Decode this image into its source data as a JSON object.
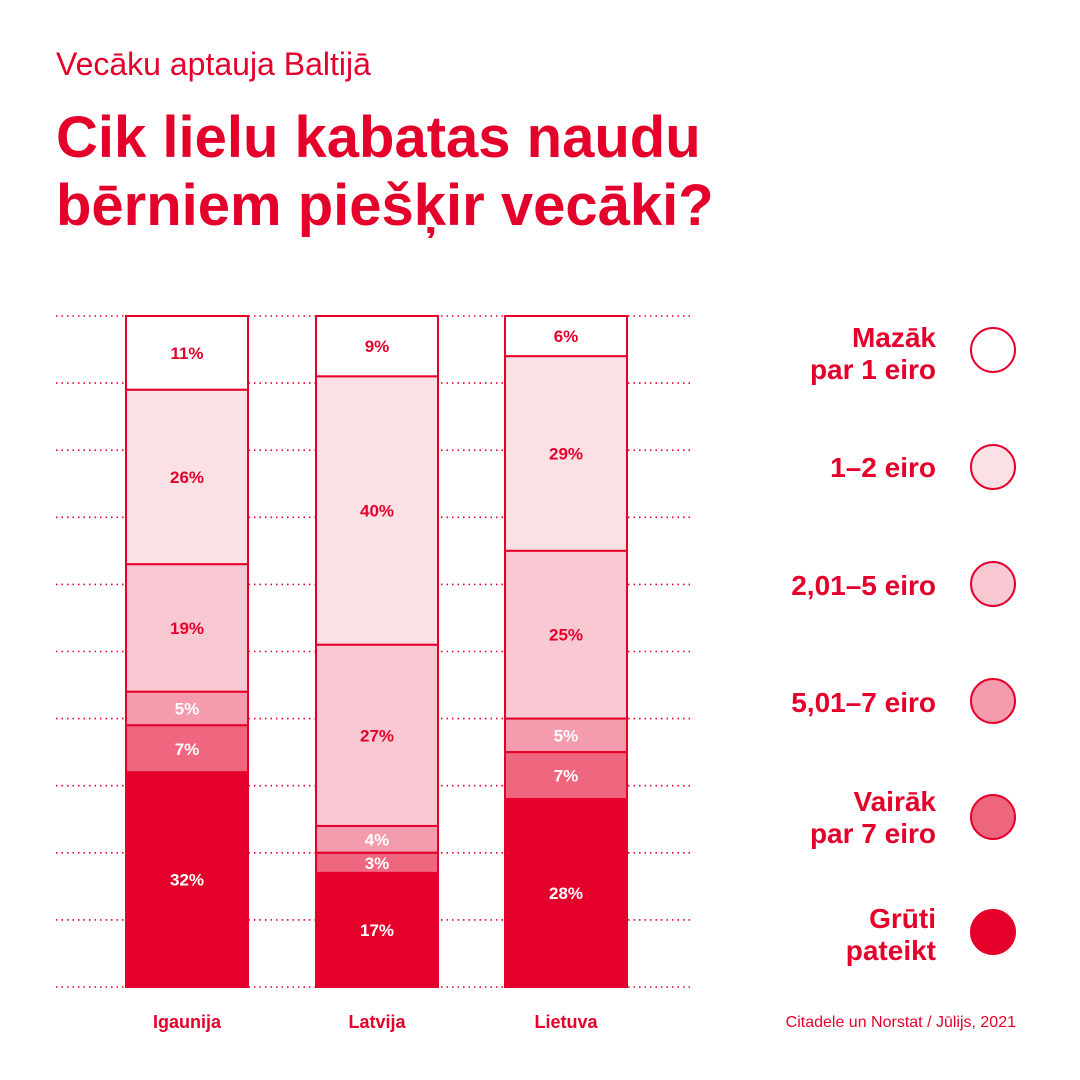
{
  "header": {
    "subtitle": "Vecāku aptauja Baltijā",
    "title_line1": "Cik lielu kabatas naudu",
    "title_line2": "bērniem piešķir vecāki?"
  },
  "colors": {
    "accent": "#e4002b",
    "segments": [
      "#ffffff",
      "#fbe1e6",
      "#f9c9d3",
      "#f49cae",
      "#ef667f",
      "#e4002b"
    ],
    "label_text": [
      "#e4002b",
      "#e4002b",
      "#e4002b",
      "#ffffff",
      "#ffffff",
      "#ffffff"
    ]
  },
  "legend": [
    {
      "line1": "Mazāk",
      "line2": "par 1 eiro"
    },
    {
      "line1": "1–2 eiro",
      "line2": ""
    },
    {
      "line1": "2,01–5 eiro",
      "line2": ""
    },
    {
      "line1": "5,01–7 eiro",
      "line2": ""
    },
    {
      "line1": "Vairāk",
      "line2": "par 7 eiro"
    },
    {
      "line1": "Grūti",
      "line2": "pateikt"
    }
  ],
  "source": "Citadele un Norstat / Jūlijs, 2021",
  "chart_data": {
    "type": "bar",
    "stacked": true,
    "normalized_percent": true,
    "categories": [
      "Igaunija",
      "Latvija",
      "Lietuva"
    ],
    "series": [
      {
        "name": "Mazāk par 1 eiro",
        "values": [
          11,
          9,
          6
        ]
      },
      {
        "name": "1–2 eiro",
        "values": [
          26,
          40,
          29
        ]
      },
      {
        "name": "2,01–5 eiro",
        "values": [
          19,
          27,
          25
        ]
      },
      {
        "name": "5,01–7 eiro",
        "values": [
          5,
          4,
          5
        ]
      },
      {
        "name": "Vairāk par 7 eiro",
        "values": [
          7,
          3,
          7
        ]
      },
      {
        "name": "Grūti pateikt",
        "values": [
          32,
          17,
          28
        ]
      }
    ],
    "value_labels": [
      [
        "11%",
        "26%",
        "19%",
        "5%",
        "7%",
        "32%"
      ],
      [
        "9%",
        "40%",
        "27%",
        "4%",
        "3%",
        "17%"
      ],
      [
        "6%",
        "29%",
        "25%",
        "5%",
        "7%",
        "28%"
      ]
    ],
    "legend_position": "right",
    "grid": true
  }
}
